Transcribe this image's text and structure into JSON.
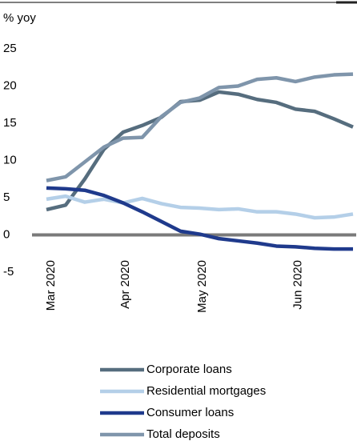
{
  "chart_data": {
    "type": "line",
    "ylabel": "% yoy",
    "x": [
      0,
      1,
      2,
      3,
      4,
      5,
      6,
      7,
      8,
      9,
      10,
      11,
      12,
      13,
      14,
      15,
      16
    ],
    "xlim": [
      -0.2,
      16.1
    ],
    "xticks": [
      {
        "value": 0.2,
        "label": "Mar 2020"
      },
      {
        "value": 4.1,
        "label": "Apr 2020"
      },
      {
        "value": 8.1,
        "label": "May 2020"
      },
      {
        "value": 13.1,
        "label": "Jun 2020"
      }
    ],
    "ylim": [
      -5,
      25
    ],
    "yticks": [
      25,
      20,
      15,
      10,
      5,
      0,
      -5
    ],
    "series": [
      {
        "name": "Corporate loans",
        "color": "#566d7e",
        "values": [
          3.4,
          4.0,
          7.5,
          11.5,
          13.8,
          14.7,
          15.8,
          17.9,
          18.1,
          19.2,
          18.9,
          18.2,
          17.8,
          16.9,
          16.6,
          15.6,
          14.5
        ]
      },
      {
        "name": "Residential mortgages",
        "color": "#b4cfe8",
        "values": [
          4.8,
          5.2,
          4.4,
          4.8,
          4.3,
          4.9,
          4.2,
          3.7,
          3.6,
          3.4,
          3.5,
          3.1,
          3.1,
          2.8,
          2.3,
          2.4,
          2.8
        ]
      },
      {
        "name": "Consumer loans",
        "color": "#1f3a8c",
        "values": [
          6.3,
          6.2,
          6.0,
          5.3,
          4.3,
          3.1,
          1.8,
          0.5,
          0.1,
          -0.5,
          -0.8,
          -1.1,
          -1.5,
          -1.6,
          -1.8,
          -1.9,
          -1.9
        ]
      },
      {
        "name": "Total deposits",
        "color": "#7f95ab",
        "values": [
          7.3,
          7.8,
          9.8,
          11.8,
          13.0,
          13.1,
          15.9,
          17.8,
          18.4,
          19.8,
          20.0,
          20.9,
          21.1,
          20.6,
          21.2,
          21.5,
          21.6
        ]
      }
    ]
  }
}
